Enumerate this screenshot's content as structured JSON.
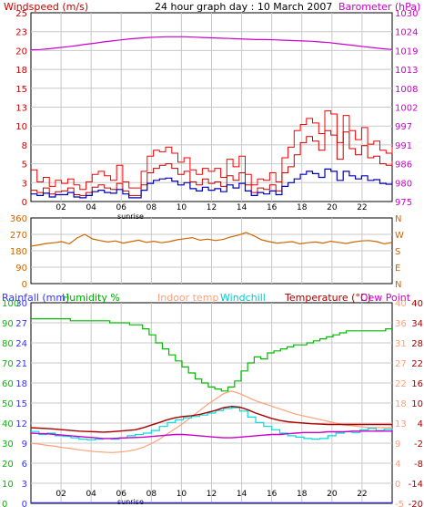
{
  "header": {
    "title": "24 hour graph day : 10 March 2007",
    "left_label": "Windspeed (m/s)",
    "right_label": "Barometer (hPa)"
  },
  "colors": {
    "windspeed": "#cc0000",
    "gust": "#ff0000",
    "wind_avg": "#0000bb",
    "barometer": "#cc00cc",
    "direction": "#cc6600",
    "rainfall": "#3333ff",
    "humidity": "#00bb00",
    "indoor_temp": "#ffa07a",
    "windchill": "#00dddd",
    "temperature": "#aa0000",
    "dew_point": "#cc00cc",
    "grid": "#c8c8c8"
  },
  "sunrise_label": "sunrise",
  "panel_labels": {
    "rainfall": "Rainfall (mm)",
    "humidity": "Humidity %",
    "indoor": "Indoor temp",
    "windchill": "Windchill",
    "temperature": "Temperature (°C)",
    "dewpoint": "Dew Point"
  },
  "chart_data": [
    {
      "type": "line",
      "x_ticks": [
        "02",
        "04",
        "06",
        "08",
        "10",
        "12",
        "14",
        "16",
        "18",
        "20",
        "22"
      ],
      "ylim_left": [
        0,
        25
      ],
      "ylim_right": [
        975,
        1030
      ],
      "y_ticks_left": [
        "25",
        "23",
        "20",
        "18",
        "15",
        "13",
        "10",
        "8",
        "5",
        "3",
        "0"
      ],
      "y_ticks_right": [
        "1030",
        "1024",
        "1019",
        "1013",
        "1008",
        "1002",
        "997",
        "991",
        "986",
        "980",
        "975"
      ],
      "series": [
        {
          "name": "Windspeed",
          "values": [
            1.5,
            1.2,
            1.8,
            1.0,
            1.3,
            1.4,
            1.8,
            0.9,
            0.8,
            1.2,
            1.9,
            2.2,
            1.8,
            1.6,
            2.4,
            1.4,
            0.8,
            0.8,
            2.2,
            3.8,
            4.4,
            4.8,
            5.0,
            4.4,
            3.6,
            4.0,
            2.6,
            2.2,
            3.0,
            2.4,
            2.6,
            2.0,
            3.4,
            2.8,
            3.8,
            2.2,
            1.2,
            1.8,
            1.6,
            2.2,
            1.4,
            3.8,
            4.6,
            6.2,
            7.8,
            8.6,
            8.0,
            6.8,
            9.4,
            8.8,
            5.6,
            9.2,
            7.0,
            6.2,
            7.4,
            5.8,
            6.0,
            5.0,
            4.8,
            5.4
          ]
        },
        {
          "name": "Gust",
          "values": [
            4.2,
            2.6,
            3.2,
            2.0,
            2.8,
            2.4,
            3.0,
            2.2,
            1.6,
            2.6,
            3.6,
            4.0,
            3.4,
            2.8,
            4.8,
            2.6,
            1.8,
            1.8,
            4.0,
            6.0,
            6.8,
            6.6,
            7.2,
            6.4,
            5.2,
            5.8,
            4.2,
            3.6,
            4.4,
            4.0,
            4.4,
            3.2,
            5.6,
            4.6,
            6.0,
            3.6,
            2.2,
            3.0,
            2.8,
            3.8,
            2.6,
            5.8,
            7.2,
            9.4,
            10.2,
            11.0,
            10.4,
            9.0,
            12.0,
            11.6,
            7.8,
            11.4,
            9.4,
            8.2,
            9.8,
            7.6,
            8.0,
            6.8,
            6.4,
            7.2
          ]
        },
        {
          "name": "Average",
          "values": [
            1.0,
            0.8,
            1.1,
            0.6,
            0.9,
            0.9,
            1.2,
            0.6,
            0.5,
            0.8,
            1.3,
            1.5,
            1.2,
            1.1,
            1.6,
            1.0,
            0.5,
            0.5,
            1.5,
            2.4,
            2.8,
            3.0,
            3.1,
            2.7,
            2.2,
            2.5,
            1.7,
            1.4,
            1.9,
            1.5,
            1.7,
            1.3,
            2.2,
            1.8,
            2.4,
            1.4,
            0.8,
            1.2,
            1.0,
            1.4,
            0.9,
            2.0,
            2.5,
            3.0,
            3.6,
            4.0,
            3.7,
            3.2,
            4.3,
            4.0,
            2.8,
            4.0,
            3.4,
            3.0,
            3.4,
            2.8,
            2.9,
            2.4,
            2.3,
            2.6
          ]
        },
        {
          "name": "Barometer",
          "values": [
            1019.2,
            1019.3,
            1019.5,
            1019.8,
            1020.1,
            1020.4,
            1020.8,
            1021.1,
            1021.5,
            1021.8,
            1022.1,
            1022.4,
            1022.6,
            1022.8,
            1022.9,
            1023.0,
            1023.0,
            1023.0,
            1022.9,
            1022.8,
            1022.7,
            1022.6,
            1022.5,
            1022.4,
            1022.3,
            1022.2,
            1022.2,
            1022.1,
            1022.0,
            1021.9,
            1021.8,
            1021.7,
            1021.5,
            1021.3,
            1021.0,
            1020.7,
            1020.4,
            1020.1,
            1019.8,
            1019.5,
            1019.3
          ]
        }
      ]
    },
    {
      "type": "line",
      "ylim": [
        0,
        360
      ],
      "y_ticks": [
        "360",
        "270",
        "180",
        "90",
        "0"
      ],
      "y_ticks_right": [
        "N",
        "W",
        "S",
        "E",
        "N"
      ],
      "series": [
        {
          "name": "Direction",
          "values": [
            205,
            212,
            220,
            224,
            230,
            218,
            250,
            270,
            245,
            236,
            228,
            234,
            222,
            230,
            238,
            226,
            232,
            224,
            230,
            240,
            246,
            252,
            238,
            244,
            236,
            242,
            256,
            266,
            280,
            262,
            240,
            230,
            222,
            226,
            230,
            218,
            224,
            228,
            222,
            232,
            226,
            220,
            228,
            234,
            236,
            230,
            218,
            226
          ]
        }
      ]
    },
    {
      "type": "line",
      "ylim": [
        0,
        100
      ],
      "ylim_temp": [
        -20,
        40
      ],
      "ylim_rain": [
        0,
        30
      ],
      "y_ticks_humidity": [
        "100",
        "90",
        "80",
        "70",
        "60",
        "50",
        "40",
        "30",
        "20",
        "10",
        "0"
      ],
      "y_ticks_rain": [
        "30",
        "27",
        "24",
        "21",
        "18",
        "15",
        "12",
        "9",
        "6",
        "3",
        "0"
      ],
      "y_ticks_temp_out": [
        "40",
        "34",
        "28",
        "22",
        "16",
        "10",
        "4",
        "-2",
        "-8",
        "-14",
        "-20"
      ],
      "y_ticks_temp_in": [
        "40",
        "36",
        "31",
        "27",
        "22",
        "18",
        "13",
        "9",
        "4",
        "0",
        "-5"
      ],
      "series": [
        {
          "name": "Humidity",
          "values": [
            92,
            92,
            92,
            92,
            92,
            92,
            91,
            91,
            91,
            91,
            91,
            91,
            90,
            90,
            90,
            89,
            89,
            87,
            84,
            80,
            77,
            74,
            71,
            68,
            65,
            62,
            60,
            58,
            57,
            56,
            58,
            61,
            66,
            70,
            73,
            72,
            75,
            76,
            77,
            78,
            79,
            79,
            80,
            81,
            82,
            83,
            84,
            85,
            86,
            86,
            86,
            86,
            86,
            86,
            87,
            87
          ]
        },
        {
          "name": "Temperature",
          "values": [
            2.6,
            2.5,
            2.4,
            2.2,
            2.0,
            1.8,
            1.6,
            1.5,
            1.4,
            1.3,
            1.4,
            1.6,
            1.8,
            2.0,
            2.6,
            3.4,
            4.2,
            5.0,
            5.6,
            6.0,
            6.2,
            6.6,
            7.2,
            7.8,
            8.6,
            9.0,
            8.8,
            8.0,
            7.0,
            6.2,
            5.4,
            4.8,
            4.4,
            4.2,
            4.0,
            3.8,
            3.7,
            3.6,
            3.6,
            3.6,
            3.6,
            3.6,
            3.6,
            3.6,
            3.6,
            3.6
          ]
        },
        {
          "name": "Dew Point",
          "values": [
            1.0,
            0.9,
            0.8,
            0.6,
            0.4,
            0.2,
            0.0,
            -0.2,
            -0.4,
            -0.6,
            -0.6,
            -0.5,
            -0.4,
            -0.3,
            -0.2,
            0.0,
            0.2,
            0.4,
            0.6,
            0.6,
            0.4,
            0.2,
            0.0,
            -0.2,
            -0.4,
            -0.4,
            -0.2,
            0.0,
            0.2,
            0.4,
            0.6,
            0.6,
            0.8,
            1.0,
            1.2,
            1.2,
            1.2,
            1.4,
            1.4,
            1.4,
            1.6,
            1.6,
            1.6,
            1.6,
            1.6,
            1.6
          ]
        },
        {
          "name": "Windchill",
          "values": [
            1.5,
            0.6,
            1.0,
            0.2,
            0.0,
            -0.4,
            -0.8,
            -1.0,
            -0.8,
            -0.6,
            -0.8,
            -0.4,
            0.2,
            0.6,
            1.0,
            1.8,
            3.0,
            4.2,
            5.0,
            5.6,
            6.0,
            6.4,
            7.0,
            7.8,
            8.4,
            8.6,
            7.6,
            5.8,
            4.2,
            3.0,
            2.0,
            1.0,
            0.2,
            -0.2,
            -0.6,
            -0.8,
            -0.6,
            0.2,
            1.0,
            1.4,
            1.2,
            2.0,
            2.4,
            1.8,
            2.2,
            2.4
          ]
        },
        {
          "name": "Indoor temp",
          "values": [
            8.5,
            8.3,
            8.0,
            7.8,
            7.5,
            7.3,
            7.0,
            6.8,
            6.6,
            6.5,
            6.4,
            6.5,
            6.7,
            7.0,
            7.6,
            8.4,
            9.4,
            10.6,
            11.8,
            13.0,
            14.4,
            15.8,
            17.2,
            18.4,
            19.6,
            20.2,
            19.6,
            18.8,
            18.0,
            17.4,
            16.8,
            16.2,
            15.6,
            15.0,
            14.6,
            14.2,
            13.8,
            13.4,
            13.0,
            12.6,
            12.4,
            12.2,
            12.0,
            12.0,
            12.0,
            12.0
          ]
        },
        {
          "name": "Rainfall",
          "values": [
            0.1,
            0.1,
            0.1,
            0.1,
            0.1,
            0.1,
            0.1,
            0.1,
            0.1,
            0.1,
            0.1,
            0.1,
            0.1,
            0.1,
            0.1,
            0.1,
            0.1,
            0.1,
            0.1,
            0.1,
            0.1,
            0.1,
            0.1,
            0.1,
            0.1
          ]
        }
      ]
    }
  ]
}
